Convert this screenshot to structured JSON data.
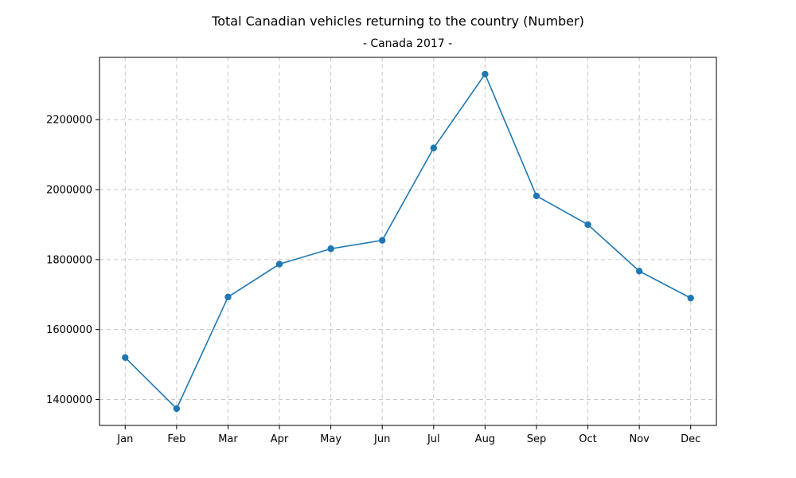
{
  "chart_data": {
    "type": "line",
    "title": "Total Canadian vehicles returning to the country (Number)",
    "subtitle": "- Canada 2017 -",
    "xlabel": "",
    "ylabel": "",
    "categories": [
      "Jan",
      "Feb",
      "Mar",
      "Apr",
      "May",
      "Jun",
      "Jul",
      "Aug",
      "Sep",
      "Oct",
      "Nov",
      "Dec"
    ],
    "series": [
      {
        "values": [
          1520000,
          1374000,
          1693000,
          1787000,
          1831000,
          1855000,
          2119000,
          2330000,
          1982000,
          1900000,
          1767000,
          1690000
        ],
        "color": "#1f77b4"
      }
    ],
    "yticks": [
      1400000,
      1600000,
      1800000,
      2000000,
      2200000
    ],
    "ylim": [
      1326000,
      2378000
    ],
    "grid": true,
    "legend": "none"
  }
}
